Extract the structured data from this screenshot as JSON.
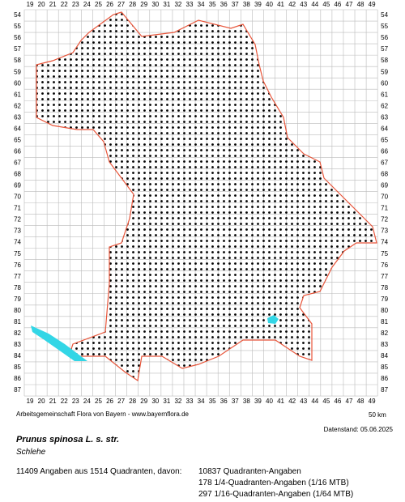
{
  "map": {
    "columns": [
      19,
      20,
      21,
      22,
      23,
      24,
      25,
      26,
      27,
      28,
      29,
      30,
      31,
      32,
      33,
      34,
      35,
      36,
      37,
      38,
      39,
      40,
      41,
      42,
      43,
      44,
      45,
      46,
      47,
      48,
      49
    ],
    "rows": [
      54,
      55,
      56,
      57,
      58,
      59,
      60,
      61,
      62,
      63,
      64,
      65,
      66,
      67,
      68,
      69,
      70,
      71,
      72,
      73,
      74,
      75,
      76,
      77,
      78,
      79,
      80,
      81,
      82,
      83,
      84,
      85,
      86,
      87
    ],
    "credit": "Arbeitsgemeinschaft Flora von Bayern - www.bayernflora.de",
    "scale_start": "0",
    "scale_end": "50 km",
    "data_date": "Datenstand: 05.06.2025",
    "species": "Prunus spinosa L. s. str.",
    "common_name": "Schlehe",
    "summary": "11409 Angaben aus 1514 Quadranten, davon:",
    "counts": [
      "10837 Quadranten-Angaben",
      "178 1/4-Quadranten-Angaben (1/16 MTB)",
      "297 1/16-Quadranten-Angaben (1/64 MTB)"
    ]
  }
}
